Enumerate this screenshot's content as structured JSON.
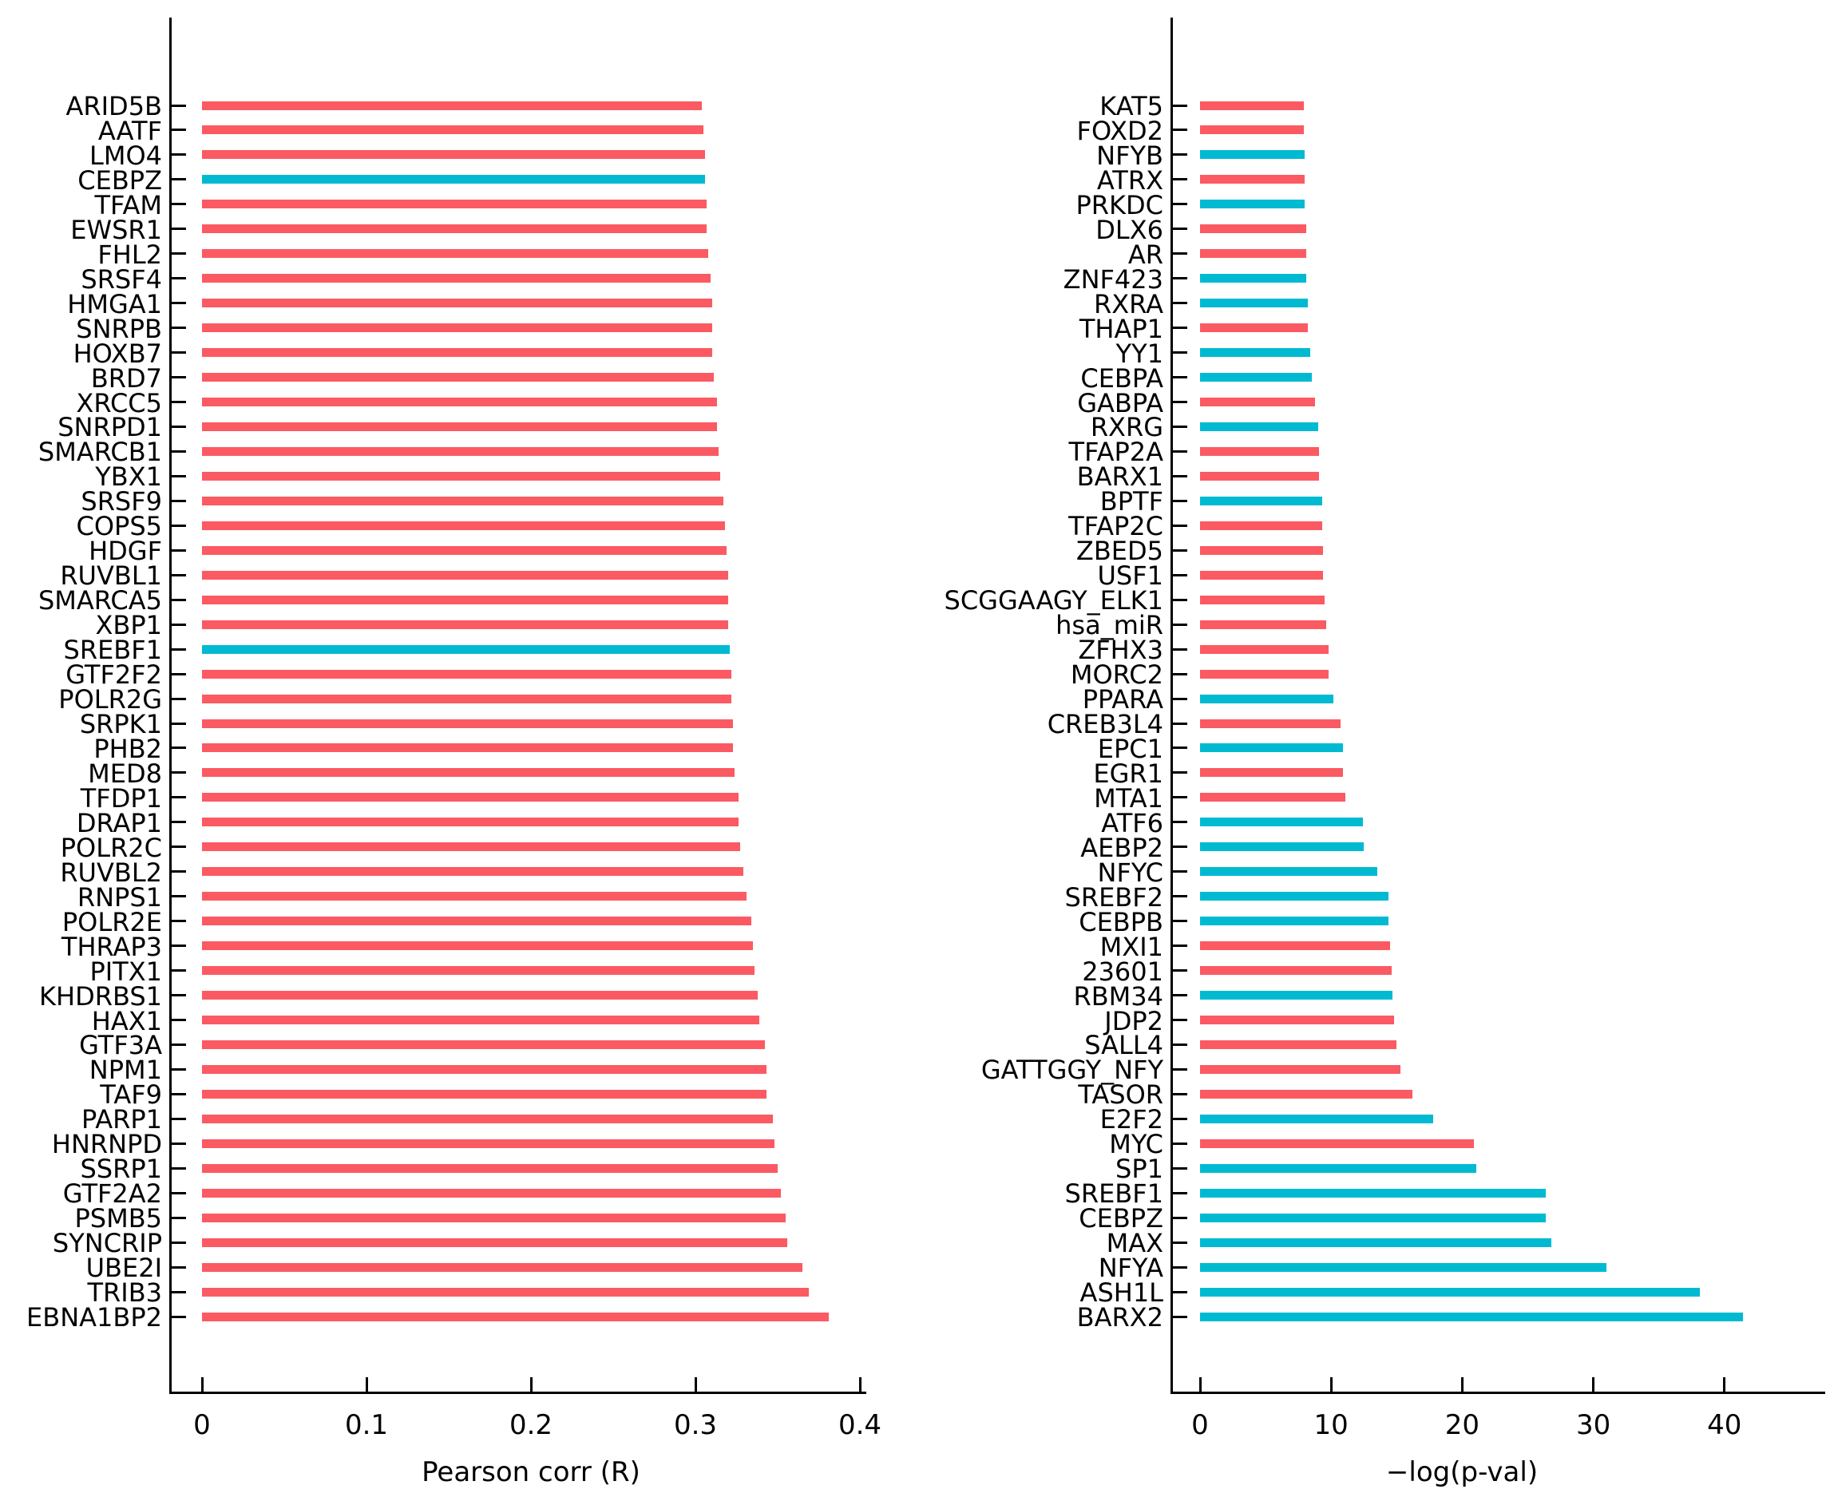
{
  "colors": {
    "red": "#fb5a63",
    "cyan": "#00bad2",
    "axis": "#000000",
    "background": "#ffffff"
  },
  "chart_data": [
    {
      "type": "bar",
      "orientation": "horizontal",
      "title": "",
      "xlabel": "Pearson corr (R)",
      "ylabel": "",
      "xlim": [
        0,
        0.404
      ],
      "grid": false,
      "legend": null,
      "xticks": [
        0,
        0.1,
        0.2,
        0.3,
        0.4
      ],
      "xtick_labels": [
        "0",
        "0.1",
        "0.2",
        "0.3",
        "0.4"
      ],
      "categories": [
        "ARID5B",
        "AATF",
        "LMO4",
        "CEBPZ",
        "TFAM",
        "EWSR1",
        "FHL2",
        "SRSF4",
        "HMGA1",
        "SNRPB",
        "HOXB7",
        "BRD7",
        "XRCC5",
        "SNRPD1",
        "SMARCB1",
        "YBX1",
        "SRSF9",
        "COPS5",
        "HDGF",
        "RUVBL1",
        "SMARCA5",
        "XBP1",
        "SREBF1",
        "GTF2F2",
        "POLR2G",
        "SRPK1",
        "PHB2",
        "MED8",
        "TFDP1",
        "DRAP1",
        "POLR2C",
        "RUVBL2",
        "RNPS1",
        "POLR2E",
        "THRAP3",
        "PITX1",
        "KHDRBS1",
        "HAX1",
        "GTF3A",
        "NPM1",
        "TAF9",
        "PARP1",
        "HNRNPD",
        "SSRP1",
        "GTF2A2",
        "PSMB5",
        "SYNCRIP",
        "UBE2I",
        "TRIB3",
        "EBNA1BP2"
      ],
      "values": [
        0.304,
        0.305,
        0.306,
        0.306,
        0.307,
        0.307,
        0.308,
        0.309,
        0.31,
        0.31,
        0.31,
        0.311,
        0.313,
        0.313,
        0.314,
        0.315,
        0.317,
        0.318,
        0.319,
        0.32,
        0.32,
        0.32,
        0.321,
        0.322,
        0.322,
        0.323,
        0.323,
        0.324,
        0.326,
        0.326,
        0.327,
        0.329,
        0.331,
        0.334,
        0.335,
        0.336,
        0.338,
        0.339,
        0.342,
        0.343,
        0.343,
        0.347,
        0.348,
        0.35,
        0.352,
        0.355,
        0.356,
        0.365,
        0.369,
        0.381
      ],
      "bar_colors": [
        "red",
        "red",
        "red",
        "cyan",
        "red",
        "red",
        "red",
        "red",
        "red",
        "red",
        "red",
        "red",
        "red",
        "red",
        "red",
        "red",
        "red",
        "red",
        "red",
        "red",
        "red",
        "red",
        "cyan",
        "red",
        "red",
        "red",
        "red",
        "red",
        "red",
        "red",
        "red",
        "red",
        "red",
        "red",
        "red",
        "red",
        "red",
        "red",
        "red",
        "red",
        "red",
        "red",
        "red",
        "red",
        "red",
        "red",
        "red",
        "red",
        "red",
        "red"
      ]
    },
    {
      "type": "bar",
      "orientation": "horizontal",
      "title": "",
      "xlabel": "−log(p-val)",
      "ylabel": "",
      "xlim": [
        0,
        47.7
      ],
      "grid": false,
      "legend": null,
      "xticks": [
        0,
        10,
        20,
        30,
        40
      ],
      "xtick_labels": [
        "0",
        "10",
        "20",
        "30",
        "40"
      ],
      "categories": [
        "KAT5",
        "FOXD2",
        "NFYB",
        "ATRX",
        "PRKDC",
        "DLX6",
        "AR",
        "ZNF423",
        "RXRA",
        "THAP1",
        "YY1",
        "CEBPA",
        "GABPA",
        "RXRG",
        "TFAP2A",
        "BARX1",
        "BPTF",
        "TFAP2C",
        "ZBED5",
        "USF1",
        "SCGGAAGY_ELK1",
        "hsa_miR",
        "ZFHX3",
        "MORC2",
        "PPARA",
        "CREB3L4",
        "EPC1",
        "EGR1",
        "MTA1",
        "ATF6",
        "AEBP2",
        "NFYC",
        "SREBF2",
        "CEBPB",
        "MXI1",
        "23601",
        "RBM34",
        "JDP2",
        "SALL4",
        "GATTGGY_NFY",
        "TASOR",
        "E2F2",
        "MYC",
        "SP1",
        "SREBF1",
        "CEBPZ",
        "MAX",
        "NFYA",
        "ASH1L",
        "BARX2"
      ],
      "values": [
        7.9,
        7.9,
        8.0,
        8.0,
        8.0,
        8.1,
        8.1,
        8.1,
        8.2,
        8.2,
        8.4,
        8.5,
        8.8,
        9.0,
        9.1,
        9.1,
        9.3,
        9.3,
        9.4,
        9.4,
        9.5,
        9.6,
        9.8,
        9.8,
        10.2,
        10.7,
        10.9,
        10.9,
        11.1,
        12.4,
        12.5,
        13.5,
        14.4,
        14.4,
        14.5,
        14.6,
        14.7,
        14.8,
        15.0,
        15.3,
        16.2,
        17.8,
        20.9,
        21.1,
        26.4,
        26.4,
        26.8,
        31.0,
        38.1,
        41.4
      ],
      "bar_colors": [
        "red",
        "red",
        "cyan",
        "red",
        "cyan",
        "red",
        "red",
        "cyan",
        "cyan",
        "red",
        "cyan",
        "cyan",
        "red",
        "cyan",
        "red",
        "red",
        "cyan",
        "red",
        "red",
        "red",
        "red",
        "red",
        "red",
        "red",
        "cyan",
        "red",
        "cyan",
        "red",
        "red",
        "cyan",
        "cyan",
        "cyan",
        "cyan",
        "cyan",
        "red",
        "red",
        "cyan",
        "red",
        "red",
        "red",
        "red",
        "cyan",
        "red",
        "cyan",
        "cyan",
        "cyan",
        "cyan",
        "cyan",
        "cyan",
        "cyan"
      ]
    }
  ]
}
